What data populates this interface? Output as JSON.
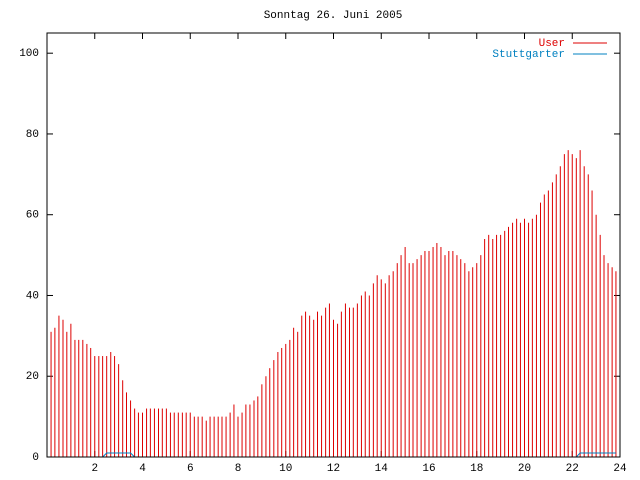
{
  "chart_data": {
    "type": "impulse",
    "title": "Sonntag 26. Juni 2005",
    "xlim": [
      0,
      24
    ],
    "ylim": [
      0,
      105
    ],
    "xticks": [
      2,
      4,
      6,
      8,
      10,
      12,
      14,
      16,
      18,
      20,
      22,
      24
    ],
    "yticks": [
      0,
      20,
      40,
      60,
      80,
      100
    ],
    "x": [
      0,
      0.17,
      0.33,
      0.5,
      0.67,
      0.83,
      1,
      1.17,
      1.33,
      1.5,
      1.67,
      1.83,
      2,
      2.17,
      2.33,
      2.5,
      2.67,
      2.83,
      3,
      3.17,
      3.33,
      3.5,
      3.67,
      3.83,
      4,
      4.17,
      4.33,
      4.5,
      4.67,
      4.83,
      5,
      5.17,
      5.33,
      5.5,
      5.67,
      5.83,
      6,
      6.17,
      6.33,
      6.5,
      6.67,
      6.83,
      7,
      7.17,
      7.33,
      7.5,
      7.67,
      7.83,
      8,
      8.17,
      8.33,
      8.5,
      8.67,
      8.83,
      9,
      9.17,
      9.33,
      9.5,
      9.67,
      9.83,
      10,
      10.17,
      10.33,
      10.5,
      10.67,
      10.83,
      11,
      11.17,
      11.33,
      11.5,
      11.67,
      11.83,
      12,
      12.17,
      12.33,
      12.5,
      12.67,
      12.83,
      13,
      13.17,
      13.33,
      13.5,
      13.67,
      13.83,
      14,
      14.17,
      14.33,
      14.5,
      14.67,
      14.83,
      15,
      15.17,
      15.33,
      15.5,
      15.67,
      15.83,
      16,
      16.17,
      16.33,
      16.5,
      16.67,
      16.83,
      17,
      17.17,
      17.33,
      17.5,
      17.67,
      17.83,
      18,
      18.17,
      18.33,
      18.5,
      18.67,
      18.83,
      19,
      19.17,
      19.33,
      19.5,
      19.67,
      19.83,
      20,
      20.17,
      20.33,
      20.5,
      20.67,
      20.83,
      21,
      21.17,
      21.33,
      21.5,
      21.67,
      21.83,
      22,
      22.17,
      22.33,
      22.5,
      22.67,
      22.83,
      23,
      23.17,
      23.33,
      23.5,
      23.67,
      23.83
    ],
    "series": [
      {
        "name": "User",
        "color": "#dd0000",
        "style": "impulses",
        "values": [
          31,
          31,
          32,
          35,
          34,
          31,
          33,
          29,
          29,
          29,
          28,
          27,
          25,
          25,
          25,
          25,
          26,
          25,
          23,
          19,
          16,
          14,
          12,
          11,
          11,
          12,
          12,
          12,
          12,
          12,
          12,
          11,
          11,
          11,
          11,
          11,
          11,
          10,
          10,
          10,
          9,
          10,
          10,
          10,
          10,
          10,
          11,
          13,
          10,
          11,
          13,
          13,
          14,
          15,
          18,
          20,
          22,
          24,
          26,
          27,
          28,
          29,
          32,
          31,
          35,
          36,
          35,
          34,
          36,
          35,
          37,
          38,
          34,
          33,
          36,
          38,
          37,
          37,
          38,
          40,
          41,
          40,
          43,
          45,
          44,
          43,
          45,
          46,
          48,
          50,
          52,
          48,
          48,
          49,
          50,
          51,
          51,
          52,
          53,
          52,
          50,
          51,
          51,
          50,
          49,
          48,
          46,
          47,
          48,
          50,
          54,
          55,
          54,
          55,
          55,
          56,
          57,
          58,
          59,
          58,
          59,
          58,
          59,
          60,
          63,
          65,
          66,
          68,
          70,
          72,
          75,
          76,
          75,
          74,
          76,
          72,
          70,
          66,
          60,
          55,
          50,
          48,
          47,
          46
        ]
      },
      {
        "name": "Stuttgarter",
        "color": "#0080c0",
        "style": "line",
        "values": [
          0,
          0,
          0,
          0,
          0,
          0,
          0,
          0,
          0,
          0,
          0,
          0,
          0,
          0,
          0,
          1,
          1,
          1,
          1,
          1,
          1,
          1,
          0,
          0,
          0,
          0,
          0,
          0,
          0,
          0,
          0,
          0,
          0,
          0,
          0,
          0,
          0,
          0,
          0,
          0,
          0,
          0,
          0,
          0,
          0,
          0,
          0,
          0,
          0,
          0,
          0,
          0,
          0,
          0,
          0,
          0,
          0,
          0,
          0,
          0,
          0,
          0,
          0,
          0,
          0,
          0,
          0,
          0,
          0,
          0,
          0,
          0,
          0,
          0,
          0,
          0,
          0,
          0,
          0,
          0,
          0,
          0,
          0,
          0,
          0,
          0,
          0,
          0,
          0,
          0,
          0,
          0,
          0,
          0,
          0,
          0,
          0,
          0,
          0,
          0,
          0,
          0,
          0,
          0,
          0,
          0,
          0,
          0,
          0,
          0,
          0,
          0,
          0,
          0,
          0,
          0,
          0,
          0,
          0,
          0,
          0,
          0,
          0,
          0,
          0,
          0,
          0,
          0,
          0,
          0,
          0,
          0,
          0,
          0,
          1,
          1,
          1,
          1,
          1,
          1,
          1,
          1,
          1,
          1
        ]
      }
    ]
  }
}
